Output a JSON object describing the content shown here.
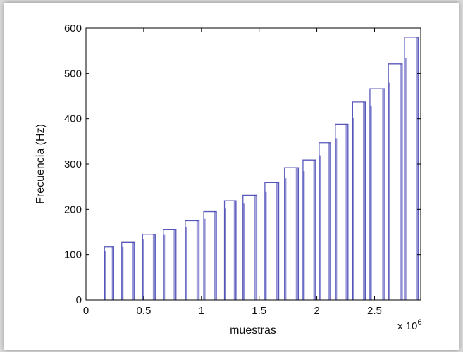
{
  "chart_data": {
    "type": "line",
    "xlabel": "muestras",
    "ylabel": "Frecuencia (Hz)",
    "x_multiplier_label": "x 10",
    "x_multiplier_exponent": "6",
    "xlim": [
      0,
      2.9
    ],
    "ylim": [
      0,
      600
    ],
    "x_ticks": [
      0,
      0.5,
      1,
      1.5,
      2,
      2.5
    ],
    "x_tick_labels": [
      "0",
      "0.5",
      "1",
      "1.5",
      "2",
      "2.5"
    ],
    "y_ticks": [
      0,
      100,
      200,
      300,
      400,
      500,
      600
    ],
    "y_tick_labels": [
      "0",
      "100",
      "200",
      "300",
      "400",
      "500",
      "600"
    ],
    "grid": false,
    "line_color": "#3b3bb0",
    "segments": [
      {
        "x_start": 0.16,
        "x_end": 0.24,
        "freq": 117
      },
      {
        "x_start": 0.31,
        "x_end": 0.42,
        "freq": 127
      },
      {
        "x_start": 0.49,
        "x_end": 0.6,
        "freq": 145
      },
      {
        "x_start": 0.67,
        "x_end": 0.78,
        "freq": 156
      },
      {
        "x_start": 0.86,
        "x_end": 0.98,
        "freq": 175
      },
      {
        "x_start": 1.02,
        "x_end": 1.13,
        "freq": 195
      },
      {
        "x_start": 1.2,
        "x_end": 1.3,
        "freq": 219
      },
      {
        "x_start": 1.36,
        "x_end": 1.48,
        "freq": 231
      },
      {
        "x_start": 1.55,
        "x_end": 1.67,
        "freq": 259
      },
      {
        "x_start": 1.72,
        "x_end": 1.84,
        "freq": 292
      },
      {
        "x_start": 1.88,
        "x_end": 1.99,
        "freq": 309
      },
      {
        "x_start": 2.02,
        "x_end": 2.12,
        "freq": 347
      },
      {
        "x_start": 2.16,
        "x_end": 2.27,
        "freq": 388
      },
      {
        "x_start": 2.31,
        "x_end": 2.42,
        "freq": 437
      },
      {
        "x_start": 2.46,
        "x_end": 2.59,
        "freq": 466
      },
      {
        "x_start": 2.62,
        "x_end": 2.74,
        "freq": 521
      },
      {
        "x_start": 2.76,
        "x_end": 2.88,
        "freq": 580
      }
    ]
  }
}
